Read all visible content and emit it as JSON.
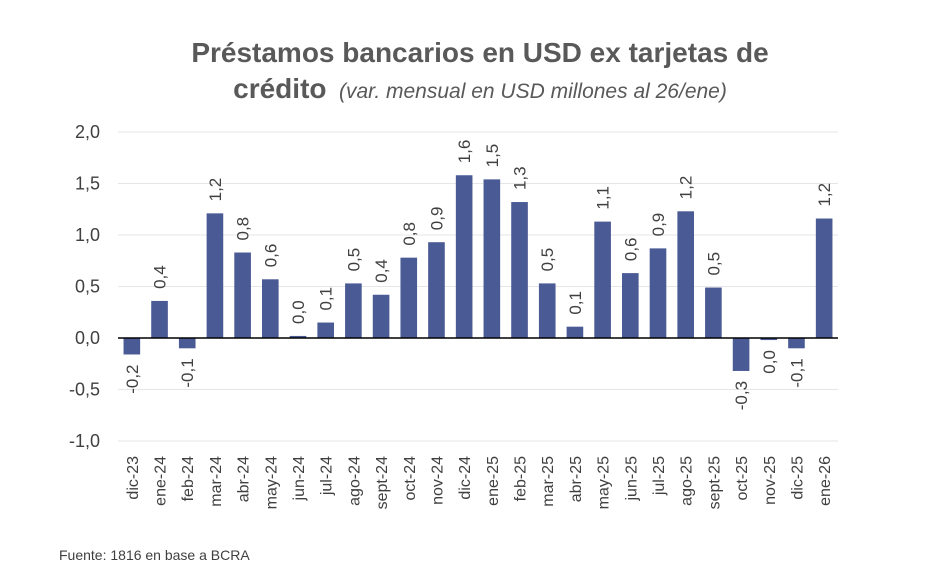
{
  "chart_data": {
    "type": "bar",
    "title": "Préstamos bancarios en USD ex tarjetas de",
    "title_line2": "crédito",
    "subtitle": "(var. mensual en USD millones al 26/ene)",
    "source": "Fuente: 1816 en base a BCRA",
    "xlabel": "",
    "ylabel": "",
    "ylim": [
      -1.0,
      2.0
    ],
    "yticks": [
      -1.0,
      -0.5,
      0.0,
      0.5,
      1.0,
      1.5,
      2.0
    ],
    "ytick_labels": [
      "-1,0",
      "-0,5",
      "0,0",
      "0,5",
      "1,0",
      "1,5",
      "2,0"
    ],
    "grid": true,
    "bar_color": "#4a5a94",
    "categories": [
      "dic-23",
      "ene-24",
      "feb-24",
      "mar-24",
      "abr-24",
      "may-24",
      "jun-24",
      "jul-24",
      "ago-24",
      "sept-24",
      "oct-24",
      "nov-24",
      "dic-24",
      "ene-25",
      "feb-25",
      "mar-25",
      "abr-25",
      "may-25",
      "jun-25",
      "jul-25",
      "ago-25",
      "sept-25",
      "oct-25",
      "nov-25",
      "dic-25",
      "ene-26"
    ],
    "values": [
      -0.16,
      0.36,
      -0.1,
      1.21,
      0.83,
      0.57,
      0.02,
      0.15,
      0.53,
      0.42,
      0.78,
      0.93,
      1.58,
      1.54,
      1.32,
      0.53,
      0.11,
      1.13,
      0.63,
      0.87,
      1.23,
      0.49,
      -0.32,
      -0.02,
      -0.1,
      1.16
    ],
    "data_labels": [
      "-0,2",
      "0,4",
      "-0,1",
      "1,2",
      "0,8",
      "0,6",
      "0,0",
      "0,1",
      "0,5",
      "0,4",
      "0,8",
      "0,9",
      "1,6",
      "1,5",
      "1,3",
      "0,5",
      "0,1",
      "1,1",
      "0,6",
      "0,9",
      "1,2",
      "0,5",
      "-0,3",
      "0,0",
      "-0,1",
      "1,2"
    ]
  }
}
